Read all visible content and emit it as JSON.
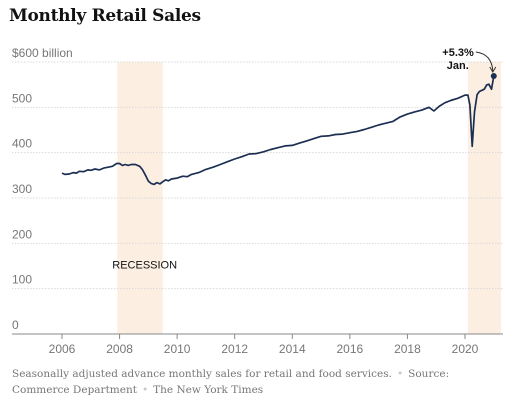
{
  "chart_data": {
    "type": "line",
    "title": "Monthly Retail Sales",
    "ylabel": "",
    "xlabel": "",
    "ylim": [
      0,
      600
    ],
    "xlim": [
      2005.6,
      2021.25
    ],
    "y_ticks": [
      {
        "value": 0,
        "label": "0"
      },
      {
        "value": 100,
        "label": "100"
      },
      {
        "value": 200,
        "label": "200"
      },
      {
        "value": 300,
        "label": "300"
      },
      {
        "value": 400,
        "label": "400"
      },
      {
        "value": 500,
        "label": "500"
      },
      {
        "value": 600,
        "label": "$600 billion"
      }
    ],
    "x_ticks": [
      "2006",
      "2008",
      "2010",
      "2012",
      "2014",
      "2016",
      "2018",
      "2020"
    ],
    "grid": "horizontal",
    "shaded_periods": [
      {
        "label": "RECESSION",
        "start": 2007.92,
        "end": 2009.5
      },
      {
        "label": "",
        "start": 2020.1,
        "end": 2021.25
      }
    ],
    "annotation": {
      "value_label": "+5.3%",
      "date_label": "Jan."
    },
    "series": [
      {
        "color": "#1b2f52",
        "points": [
          [
            2006.0,
            355
          ],
          [
            2006.1,
            352
          ],
          [
            2006.25,
            353
          ],
          [
            2006.4,
            356
          ],
          [
            2006.5,
            355
          ],
          [
            2006.6,
            359
          ],
          [
            2006.75,
            358
          ],
          [
            2006.9,
            362
          ],
          [
            2007.0,
            361
          ],
          [
            2007.15,
            364
          ],
          [
            2007.3,
            362
          ],
          [
            2007.45,
            366
          ],
          [
            2007.6,
            368
          ],
          [
            2007.75,
            370
          ],
          [
            2007.9,
            376
          ],
          [
            2008.0,
            376
          ],
          [
            2008.1,
            372
          ],
          [
            2008.2,
            374
          ],
          [
            2008.3,
            372
          ],
          [
            2008.4,
            374
          ],
          [
            2008.55,
            374
          ],
          [
            2008.7,
            370
          ],
          [
            2008.8,
            362
          ],
          [
            2008.9,
            350
          ],
          [
            2009.0,
            337
          ],
          [
            2009.1,
            332
          ],
          [
            2009.2,
            330
          ],
          [
            2009.3,
            334
          ],
          [
            2009.4,
            331
          ],
          [
            2009.5,
            336
          ],
          [
            2009.6,
            340
          ],
          [
            2009.7,
            338
          ],
          [
            2009.8,
            342
          ],
          [
            2010.0,
            344
          ],
          [
            2010.2,
            348
          ],
          [
            2010.35,
            347
          ],
          [
            2010.5,
            352
          ],
          [
            2010.75,
            356
          ],
          [
            2011.0,
            363
          ],
          [
            2011.25,
            368
          ],
          [
            2011.5,
            374
          ],
          [
            2011.75,
            380
          ],
          [
            2012.0,
            386
          ],
          [
            2012.25,
            391
          ],
          [
            2012.5,
            397
          ],
          [
            2012.75,
            398
          ],
          [
            2013.0,
            402
          ],
          [
            2013.25,
            407
          ],
          [
            2013.5,
            411
          ],
          [
            2013.75,
            415
          ],
          [
            2014.0,
            416
          ],
          [
            2014.25,
            421
          ],
          [
            2014.5,
            426
          ],
          [
            2014.75,
            431
          ],
          [
            2015.0,
            436
          ],
          [
            2015.25,
            437
          ],
          [
            2015.5,
            440
          ],
          [
            2015.75,
            441
          ],
          [
            2016.0,
            444
          ],
          [
            2016.25,
            447
          ],
          [
            2016.5,
            451
          ],
          [
            2016.75,
            456
          ],
          [
            2017.0,
            461
          ],
          [
            2017.25,
            465
          ],
          [
            2017.5,
            469
          ],
          [
            2017.75,
            479
          ],
          [
            2018.0,
            485
          ],
          [
            2018.25,
            490
          ],
          [
            2018.5,
            494
          ],
          [
            2018.75,
            500
          ],
          [
            2018.92,
            492
          ],
          [
            2019.1,
            502
          ],
          [
            2019.3,
            510
          ],
          [
            2019.5,
            515
          ],
          [
            2019.75,
            520
          ],
          [
            2020.0,
            527
          ],
          [
            2020.1,
            527
          ],
          [
            2020.17,
            505
          ],
          [
            2020.25,
            414
          ],
          [
            2020.33,
            490
          ],
          [
            2020.42,
            528
          ],
          [
            2020.5,
            535
          ],
          [
            2020.67,
            540
          ],
          [
            2020.75,
            549
          ],
          [
            2020.83,
            551
          ],
          [
            2020.92,
            540
          ],
          [
            2021.0,
            569
          ]
        ]
      }
    ]
  },
  "footer": {
    "note": "Seasonally adjusted advance monthly sales for retail and food services.",
    "source": "Source: Commerce Department",
    "credit": "The New York Times"
  }
}
